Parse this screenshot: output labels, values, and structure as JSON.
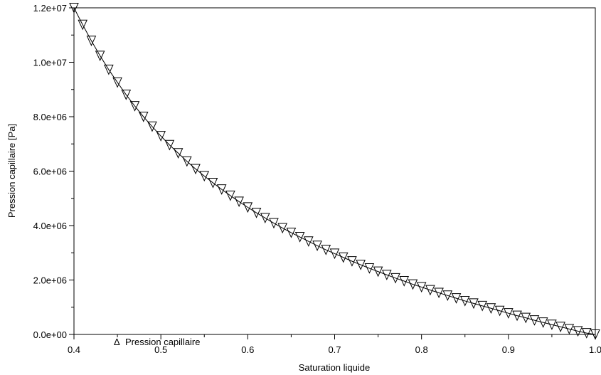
{
  "chart_data": {
    "type": "line",
    "xlabel": "Saturation liquide",
    "ylabel": "Pression capillaire [Pa]",
    "xlim": [
      0.4,
      1.0
    ],
    "ylim": [
      0,
      12000000
    ],
    "x_ticks": [
      "0.4",
      "0.5",
      "0.6",
      "0.7",
      "0.8",
      "0.9",
      "1.0"
    ],
    "y_ticks": [
      "0.0e+00",
      "2.0e+06",
      "4.0e+06",
      "6.0e+06",
      "8.0e+06",
      "1.0e+07",
      "1.2e+07"
    ],
    "grid": false,
    "legend": {
      "position": "bottom-left",
      "symbol": "Δ",
      "label": "Pression capillaire"
    },
    "series": [
      {
        "name": "Pression capillaire",
        "marker": "triangle-down",
        "x": [
          0.4,
          0.41,
          0.42,
          0.43,
          0.44,
          0.45,
          0.46,
          0.47,
          0.48,
          0.49,
          0.5,
          0.51,
          0.52,
          0.53,
          0.54,
          0.55,
          0.56,
          0.57,
          0.58,
          0.59,
          0.6,
          0.61,
          0.62,
          0.63,
          0.64,
          0.65,
          0.66,
          0.67,
          0.68,
          0.69,
          0.7,
          0.71,
          0.72,
          0.73,
          0.74,
          0.75,
          0.76,
          0.77,
          0.78,
          0.79,
          0.8,
          0.81,
          0.82,
          0.83,
          0.84,
          0.85,
          0.86,
          0.87,
          0.88,
          0.89,
          0.9,
          0.91,
          0.92,
          0.93,
          0.94,
          0.95,
          0.96,
          0.97,
          0.98,
          0.99,
          1.0
        ],
        "y": [
          12000000,
          11380000,
          10790000,
          10240000,
          9730000,
          9260000,
          8810000,
          8390000,
          8000000,
          7640000,
          7290000,
          6960000,
          6660000,
          6360000,
          6080000,
          5820000,
          5570000,
          5330000,
          5100000,
          4880000,
          4670000,
          4470000,
          4280000,
          4090000,
          3910000,
          3740000,
          3580000,
          3420000,
          3260000,
          3110000,
          2970000,
          2830000,
          2690000,
          2560000,
          2430000,
          2310000,
          2190000,
          2070000,
          1960000,
          1840000,
          1740000,
          1630000,
          1530000,
          1430000,
          1330000,
          1230000,
          1140000,
          1050000,
          960000,
          870000,
          780000,
          690000,
          610000,
          520000,
          440000,
          360000,
          280000,
          200000,
          120000,
          50000,
          0
        ]
      }
    ]
  }
}
